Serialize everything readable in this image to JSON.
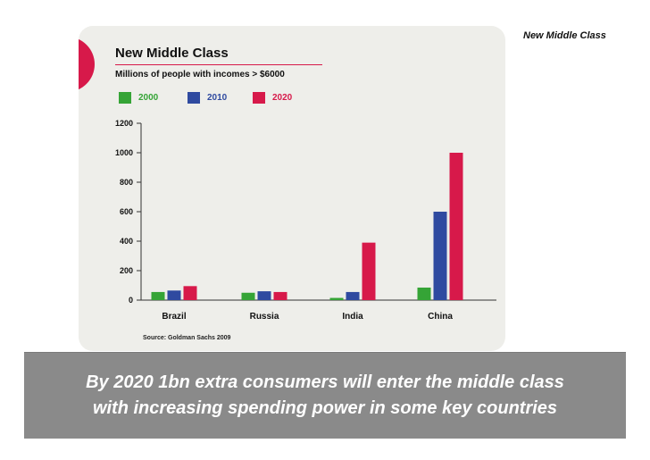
{
  "slide": {
    "tag": "New Middle Class",
    "banner_line1": "By 2020 1bn extra consumers will enter the middle class",
    "banner_line2": "with increasing spending power in some key countries"
  },
  "chart_data": {
    "type": "bar",
    "title": "New Middle Class",
    "subtitle": "Millions of people with incomes > $6000",
    "source": "Source: Goldman Sachs 2009",
    "categories": [
      "Brazil",
      "Russia",
      "India",
      "China"
    ],
    "series": [
      {
        "name": "2000",
        "color": "#35a436",
        "values": [
          55,
          50,
          15,
          85
        ]
      },
      {
        "name": "2010",
        "color": "#2f4aa0",
        "values": [
          65,
          60,
          55,
          600
        ]
      },
      {
        "name": "2020",
        "color": "#d7194a",
        "values": [
          95,
          55,
          390,
          1000
        ]
      }
    ],
    "ylim": [
      0,
      1200
    ],
    "yticks": [
      "0",
      "200",
      "400",
      "600",
      "800",
      "1000",
      "1200"
    ],
    "legend_position": "top-left",
    "grid": false
  }
}
